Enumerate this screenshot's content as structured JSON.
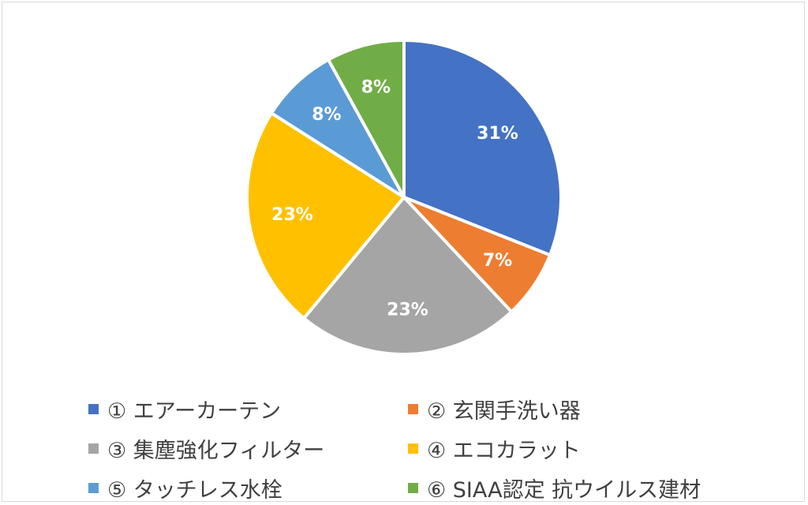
{
  "chart_data": {
    "type": "pie",
    "title": "",
    "categories": [
      "① エアーカーテン",
      "② 玄関手洗い器",
      "③ 集塵強化フィルター",
      "④ エコカラット",
      "⑤ タッチレス水栓",
      "⑥ SIAA認定 抗ウイルス建材"
    ],
    "values": [
      31,
      7,
      23,
      23,
      8,
      8
    ],
    "value_labels": [
      "31%",
      "7%",
      "23%",
      "23%",
      "8%",
      "8%"
    ],
    "colors": [
      "#4472C4",
      "#ED7D31",
      "#A5A5A5",
      "#FFC000",
      "#5B9BD5",
      "#70AD47"
    ],
    "start_angle": "12 o'clock",
    "direction": "clockwise",
    "legend_position": "bottom"
  }
}
